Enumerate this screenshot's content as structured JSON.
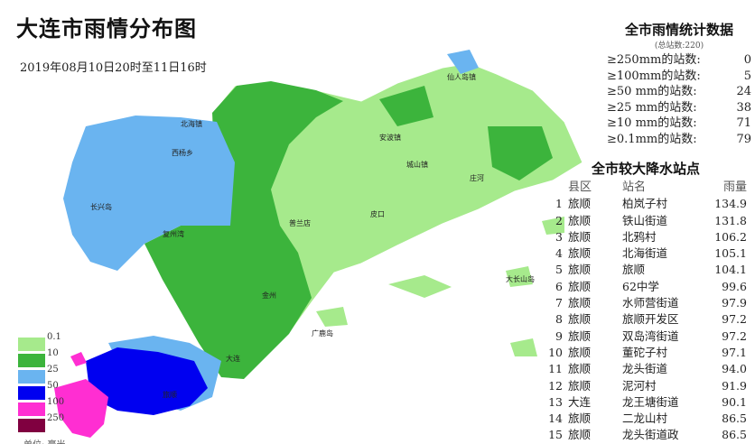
{
  "title": "大连市雨情分布图",
  "date": "2019年08月10日20时至11日16时",
  "stats": {
    "title": "全市雨情统计数据",
    "total": "(总站数:220)",
    "rows": [
      {
        "label": "≥250mm的站数:",
        "value": "0"
      },
      {
        "label": "≥100mm的站数:",
        "value": "5"
      },
      {
        "label": "≥50 mm的站数:",
        "value": "24"
      },
      {
        "label": "≥25 mm的站数:",
        "value": "38"
      },
      {
        "label": "≥10 mm的站数:",
        "value": "71"
      },
      {
        "label": "≥0.1mm的站数:",
        "value": "79"
      }
    ]
  },
  "table": {
    "title": "全市较大降水站点",
    "headers": [
      "县区",
      "站名",
      "雨量"
    ],
    "rows": [
      [
        "1",
        "旅顺",
        "柏岚子村",
        "134.9"
      ],
      [
        "2",
        "旅顺",
        "铁山街道",
        "131.8"
      ],
      [
        "3",
        "旅顺",
        "北鸦村",
        "106.2"
      ],
      [
        "4",
        "旅顺",
        "北海街道",
        "105.1"
      ],
      [
        "5",
        "旅顺",
        "旅顺",
        "104.1"
      ],
      [
        "6",
        "旅顺",
        "62中学",
        "99.6"
      ],
      [
        "7",
        "旅顺",
        "水师营街道",
        "97.9"
      ],
      [
        "8",
        "旅顺",
        "旅顺开发区",
        "97.2"
      ],
      [
        "9",
        "旅顺",
        "双岛湾街道",
        "97.2"
      ],
      [
        "10",
        "旅顺",
        "董砣子村",
        "97.1"
      ],
      [
        "11",
        "旅顺",
        "龙头街道",
        "94.0"
      ],
      [
        "12",
        "旅顺",
        "泥河村",
        "91.9"
      ],
      [
        "13",
        "大连",
        "龙王塘街道",
        "90.1"
      ],
      [
        "14",
        "旅顺",
        "二龙山村",
        "86.5"
      ],
      [
        "15",
        "旅顺",
        "龙头街道政",
        "86.5"
      ]
    ]
  },
  "legend": {
    "items": [
      {
        "label": "0.1",
        "color": "#a6ea8c"
      },
      {
        "label": "10",
        "color": "#3cb43c"
      },
      {
        "label": "25",
        "color": "#6ab4f0"
      },
      {
        "label": "50",
        "color": "#0000f0"
      },
      {
        "label": "100",
        "color": "#ff2ed2"
      },
      {
        "label": "250",
        "color": "#800040"
      }
    ],
    "unit": "单位: 毫米"
  },
  "places": [
    "仙人岛镇",
    "北海镇",
    "长兴岛",
    "西杨乡",
    "复州湾",
    "普兰店",
    "皮口",
    "安波镇",
    "庄河",
    "城山镇",
    "金州",
    "大连",
    "旅顺",
    "大长山岛",
    "广鹿岛"
  ]
}
